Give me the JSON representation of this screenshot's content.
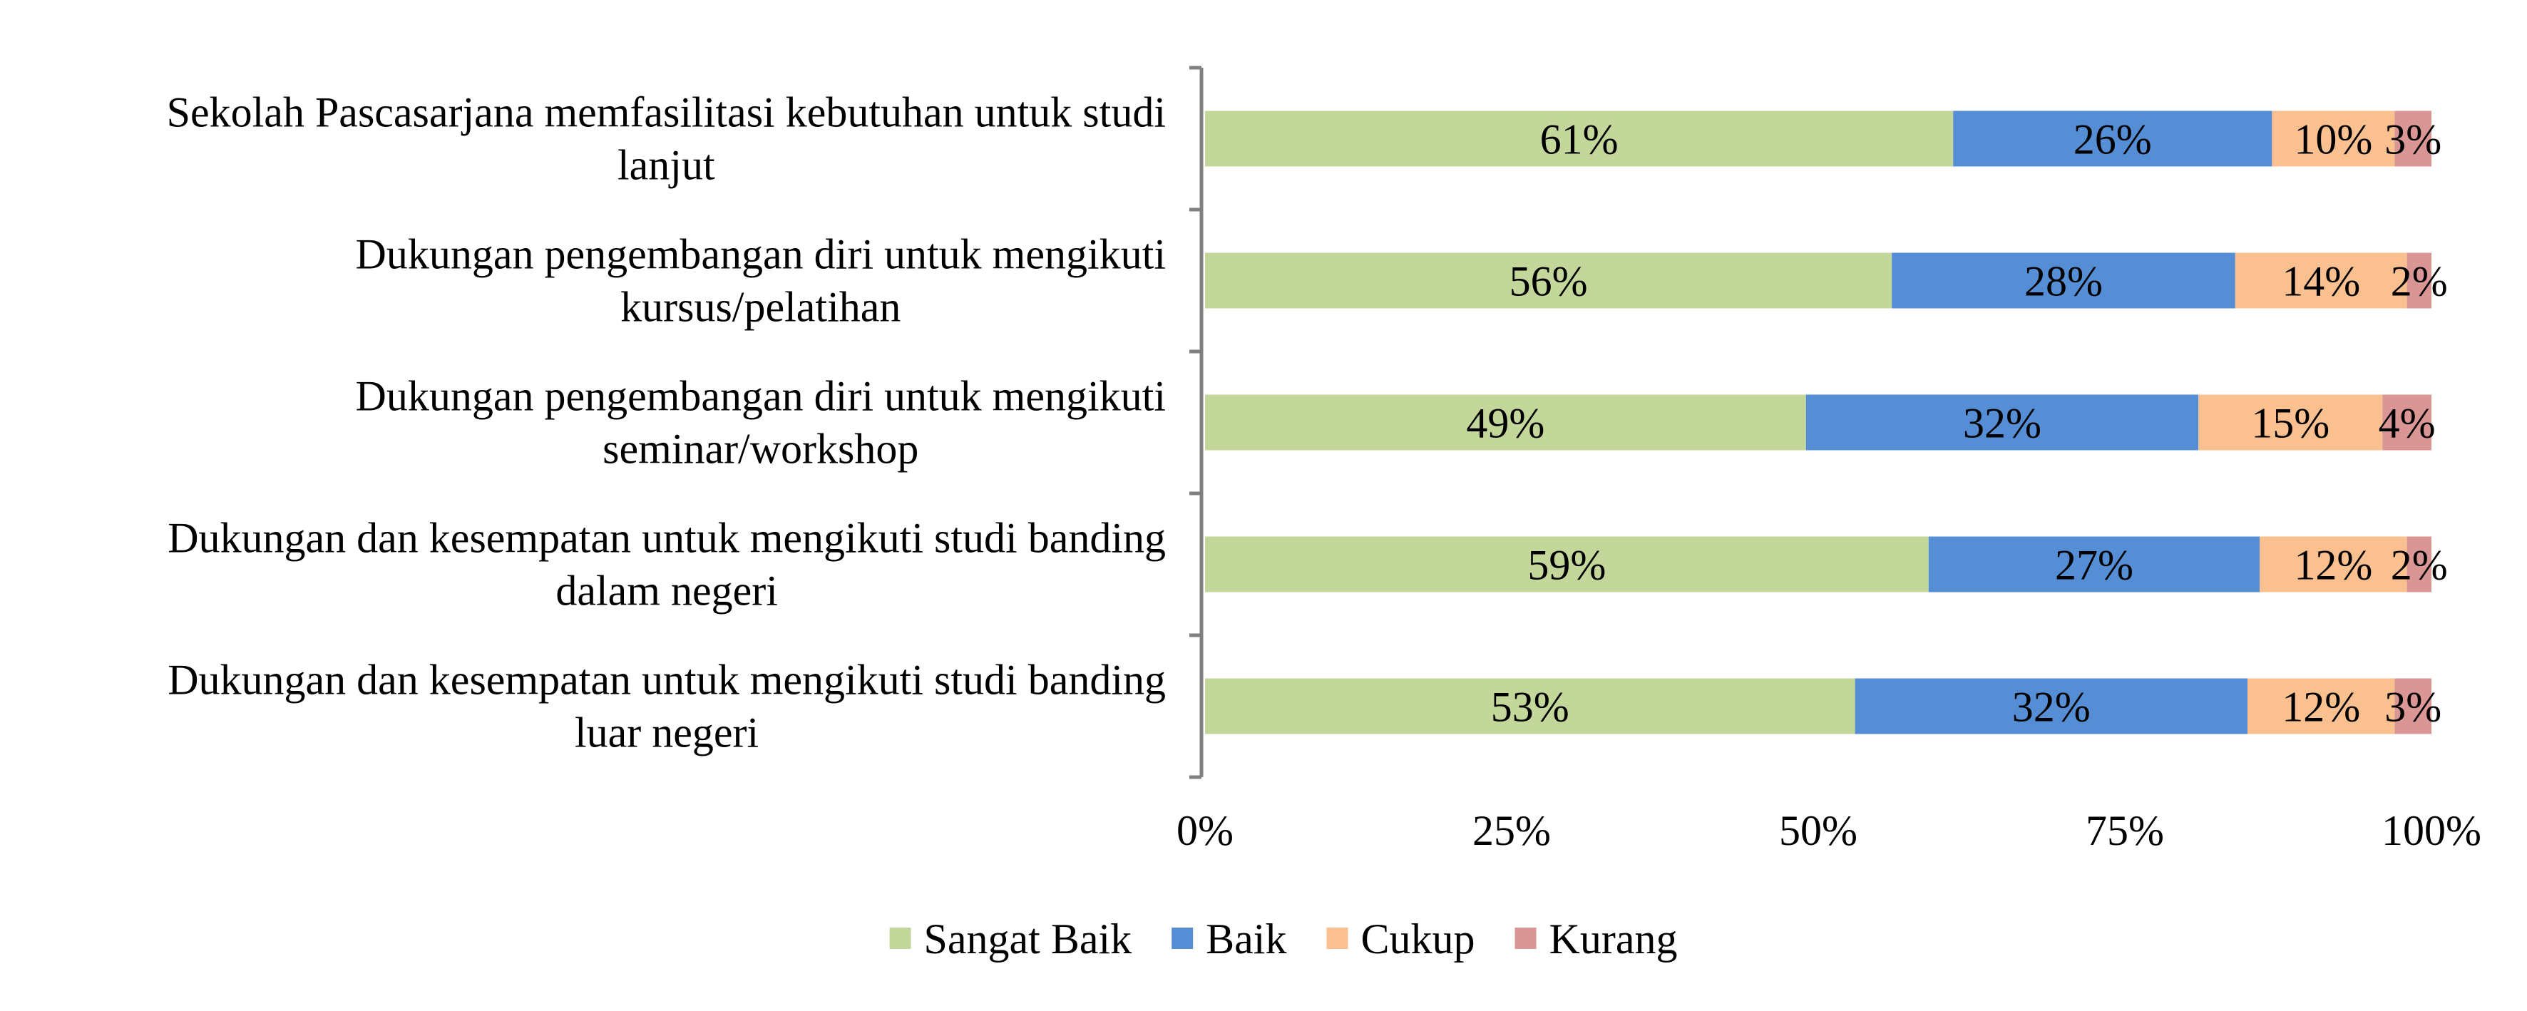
{
  "chart_data": {
    "type": "bar",
    "orientation": "horizontal",
    "stacked": true,
    "percent": true,
    "title": "",
    "xlabel": "",
    "ylabel": "",
    "xlim": [
      0,
      100
    ],
    "x_ticks": [
      "0%",
      "25%",
      "50%",
      "75%",
      "100%"
    ],
    "grid": false,
    "legend_position": "bottom",
    "categories": [
      [
        "Sekolah Pascasarjana memfasilitasi kebutuhan untuk studi",
        "lanjut"
      ],
      [
        "Dukungan pengembangan diri untuk mengikuti",
        "kursus/pelatihan"
      ],
      [
        "Dukungan pengembangan diri untuk mengikuti",
        "seminar/workshop"
      ],
      [
        "Dukungan dan kesempatan untuk mengikuti studi banding",
        "dalam negeri"
      ],
      [
        "Dukungan dan kesempatan untuk mengikuti studi banding",
        "luar negeri"
      ]
    ],
    "series": [
      {
        "name": "Sangat Baik",
        "color": "#c4d79b",
        "values": [
          61,
          56,
          49,
          59,
          53
        ]
      },
      {
        "name": "Baik",
        "color": "#558ed5",
        "values": [
          26,
          28,
          32,
          27,
          32
        ]
      },
      {
        "name": "Cukup",
        "color": "#fac090",
        "values": [
          10,
          14,
          15,
          12,
          12
        ]
      },
      {
        "name": "Kurang",
        "color": "#d99694",
        "values": [
          3,
          2,
          4,
          2,
          3
        ]
      }
    ],
    "data_labels": [
      [
        "61%",
        "26%",
        "10%",
        "3%"
      ],
      [
        "56%",
        "28%",
        "14%",
        "2%"
      ],
      [
        "49%",
        "32%",
        "15%",
        "4%"
      ],
      [
        "59%",
        "27%",
        "12%",
        "2%"
      ],
      [
        "53%",
        "32%",
        "12%",
        "3%"
      ]
    ]
  }
}
